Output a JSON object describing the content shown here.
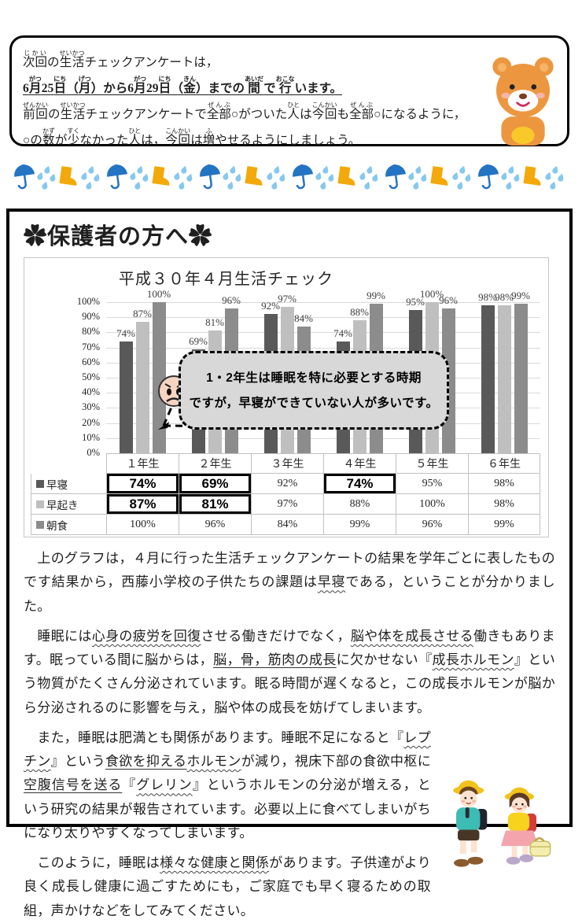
{
  "intro_box": {
    "lines": [
      {
        "style": "normal",
        "segments": [
          {
            "t": "次回",
            "r": "じかい"
          },
          {
            "t": "の"
          },
          {
            "t": "生活",
            "r": "せいかつ"
          },
          {
            "t": "チェックアンケートは，"
          }
        ]
      },
      {
        "style": "emphasis",
        "segments": [
          {
            "t": "6"
          },
          {
            "t": "月",
            "r": "がつ"
          },
          {
            "t": "25"
          },
          {
            "t": "日",
            "r": "にち"
          },
          {
            "t": "（"
          },
          {
            "t": "月",
            "r": "げつ"
          },
          {
            "t": "）から6"
          },
          {
            "t": "月",
            "r": "がつ"
          },
          {
            "t": "29"
          },
          {
            "t": "日",
            "r": "にち"
          },
          {
            "t": "（"
          },
          {
            "t": "金",
            "r": "きん"
          },
          {
            "t": "）までの"
          },
          {
            "t": "間",
            "r": "あいだ"
          },
          {
            "t": "で"
          },
          {
            "t": "行",
            "r": "おこな"
          },
          {
            "t": "います。"
          }
        ]
      },
      {
        "style": "normal",
        "segments": [
          {
            "t": "前回",
            "r": "ぜんかい"
          },
          {
            "t": "の"
          },
          {
            "t": "生活",
            "r": "せいかつ"
          },
          {
            "t": "チェックアンケートで"
          },
          {
            "t": "全部",
            "r": "ぜんぶ"
          },
          {
            "t": "○がついた"
          },
          {
            "t": "人",
            "r": "ひと"
          },
          {
            "t": "は"
          },
          {
            "t": "今回",
            "r": "こんかい"
          },
          {
            "t": "も"
          },
          {
            "t": "全部",
            "r": "ぜんぶ"
          },
          {
            "t": "○になるように，"
          }
        ]
      },
      {
        "style": "normal",
        "segments": [
          {
            "t": "○の"
          },
          {
            "t": "数",
            "r": "かず"
          },
          {
            "t": "が"
          },
          {
            "t": "少",
            "r": "すく"
          },
          {
            "t": "なかった"
          },
          {
            "t": "人",
            "r": "ひと"
          },
          {
            "t": "は，"
          },
          {
            "t": "今回",
            "r": "こんかい"
          },
          {
            "t": "は"
          },
          {
            "t": "増",
            "r": "ふ"
          },
          {
            "t": "やせるようにしましょう。"
          }
        ]
      }
    ]
  },
  "decor": {
    "umbrella_color": "#2374c2",
    "raindrop_color": "#86c8ee",
    "boot_color": "#f3a90a",
    "repeat": 6
  },
  "main": {
    "heading": "✿保護者の方へ✿",
    "callout": {
      "line1": "1・2年生は睡眠を特に必要とする時期",
      "line2": "ですが，早寝ができていない人が多いです。",
      "face_icon": "sad-face"
    },
    "paragraphs": [
      {
        "segments": [
          {
            "t": "　上のグラフは，４月に行った生活チェックアンケートの結果を学年ごとに表したものです結果から，西藤小学校の子供たちの課題は"
          },
          {
            "t": "早寝",
            "u": "wavy"
          },
          {
            "t": "である，ということが分かりました。"
          }
        ]
      },
      {
        "segments": [
          {
            "t": "　睡眠には"
          },
          {
            "t": "心身の疲労を回復",
            "u": "wavy"
          },
          {
            "t": "させる働きだけでなく，"
          },
          {
            "t": "脳や体を成長させる",
            "u": "wavy"
          },
          {
            "t": "働きもあります。眠っている間に脳からは，"
          },
          {
            "t": "脳，骨，筋肉の成長",
            "u": "solid"
          },
          {
            "t": "に欠かせない『"
          },
          {
            "t": "成長ホルモン",
            "u": "wavy"
          },
          {
            "t": "』という物質がたくさん分泌されています。眠る時間が遅くなると，この成長ホルモンが脳から分泌されるのに影響を与え，脳や体の成長を妨げてしまいます。"
          }
        ]
      },
      {
        "segments": [
          {
            "t": "　また，睡眠は肥満とも関係があります。睡眠不足になると『"
          },
          {
            "t": "レプチン",
            "u": "wavy"
          },
          {
            "t": "』という"
          },
          {
            "t": "食欲を抑える",
            "u": "solid"
          },
          {
            "t": "ホルモン",
            "u": "wavy"
          },
          {
            "t": "が減り，視床下部の食欲中枢に"
          },
          {
            "t": "空腹信号を送る",
            "u": "solid"
          },
          {
            "t": "『"
          },
          {
            "t": "グレリン",
            "u": "wavy"
          },
          {
            "t": "』というホルモンの分泌が増える，という研究の結果が報告されています。必要以上に食べてしまいがちになり太りやすくなってしまいます。"
          }
        ]
      },
      {
        "segments": [
          {
            "t": "　このように，睡眠は"
          },
          {
            "t": "様々な健康と関係",
            "u": "wavy"
          },
          {
            "t": "があります。子供達がより良く成長し健康に過ごすためにも，ご家庭でも早く寝るための取組，声かけなどをしてみてください。"
          }
        ]
      }
    ]
  },
  "chart_data": {
    "type": "bar",
    "title": "平成３０年４月生活チェック",
    "categories": [
      "１年生",
      "２年生",
      "３年生",
      "４年生",
      "５年生",
      "６年生"
    ],
    "series": [
      {
        "name": "早寝",
        "color": "#595959",
        "values": [
          74,
          69,
          92,
          74,
          95,
          98
        ]
      },
      {
        "name": "早起き",
        "color": "#bfbfbf",
        "values": [
          87,
          81,
          97,
          88,
          100,
          98
        ]
      },
      {
        "name": "朝食",
        "color": "#8c8c8c",
        "values": [
          100,
          96,
          84,
          99,
          96,
          99
        ]
      }
    ],
    "ylim": [
      0,
      100
    ],
    "ytick_step": 10,
    "ytick_labels": [
      "100%",
      "90%",
      "80%",
      "70%",
      "60%",
      "50%",
      "40%",
      "30%",
      "20%",
      "10%",
      "0%"
    ],
    "data_label_suffix": "%",
    "grid": true,
    "legend_position": "table-left",
    "highlighted_cells": [
      [
        0,
        0
      ],
      [
        0,
        1
      ],
      [
        0,
        3
      ],
      [
        1,
        0
      ],
      [
        1,
        1
      ]
    ]
  }
}
